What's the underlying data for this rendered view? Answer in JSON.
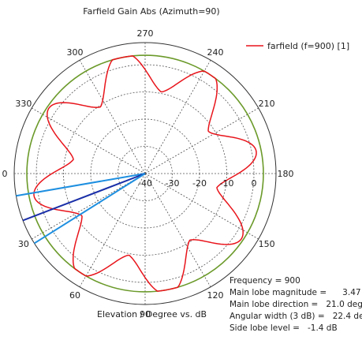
{
  "chart_data": {
    "type": "polar",
    "title": "Farfield Gain Abs (Azimuth=90)",
    "xlabel": "Elevation / Degree vs. dB",
    "angle_labels": [
      "270",
      "240",
      "210",
      "180",
      "150",
      "120",
      "90",
      "60",
      "30",
      "0",
      "330",
      "300"
    ],
    "angle_label_values": [
      270,
      240,
      210,
      180,
      150,
      120,
      90,
      60,
      30,
      0,
      330,
      300
    ],
    "radial_tick_labels": [
      "-40",
      "-30",
      "-20",
      "-10",
      "0"
    ],
    "radial_range_db": [
      -40,
      0
    ],
    "grid": true,
    "legend": {
      "position": "top-right",
      "entries": [
        "farfield (f=900) [1]"
      ]
    },
    "series": [
      {
        "name": "farfield (f=900) [1]",
        "color": "#e8141b",
        "description_points": {
          "angle_deg": [
            0,
            15,
            21,
            30,
            45,
            60,
            75,
            90,
            105,
            120,
            135,
            150,
            159,
            165,
            180
          ],
          "gain_db": [
            -6,
            -2.5,
            3.47,
            -2,
            -12,
            -1.5,
            -12,
            -2,
            -12,
            -1.5,
            -12,
            -2,
            3.47,
            -2.5,
            -6
          ]
        }
      }
    ],
    "reference_circle": {
      "color": "#6b9a2a",
      "value_db": 3.47
    },
    "main_lobe_lines": {
      "colors": [
        "#1e8fe0",
        "#1a2fa8",
        "#1e8fe0"
      ],
      "angles_deg": [
        9.8,
        21.0,
        32.2
      ]
    },
    "annotations": {
      "frequency": "Frequency = 900",
      "main_lobe_magnitude_label": "Main lobe magnitude =",
      "main_lobe_magnitude_value": "3.47 dB",
      "main_lobe_direction_label": "Main lobe direction =",
      "main_lobe_direction_value": "21.0 deg.",
      "angular_width_label": "Angular width (3 dB) =",
      "angular_width_value": "22.4 deg.",
      "side_lobe_label": "Side lobe level =",
      "side_lobe_value": "-1.4 dB"
    }
  }
}
